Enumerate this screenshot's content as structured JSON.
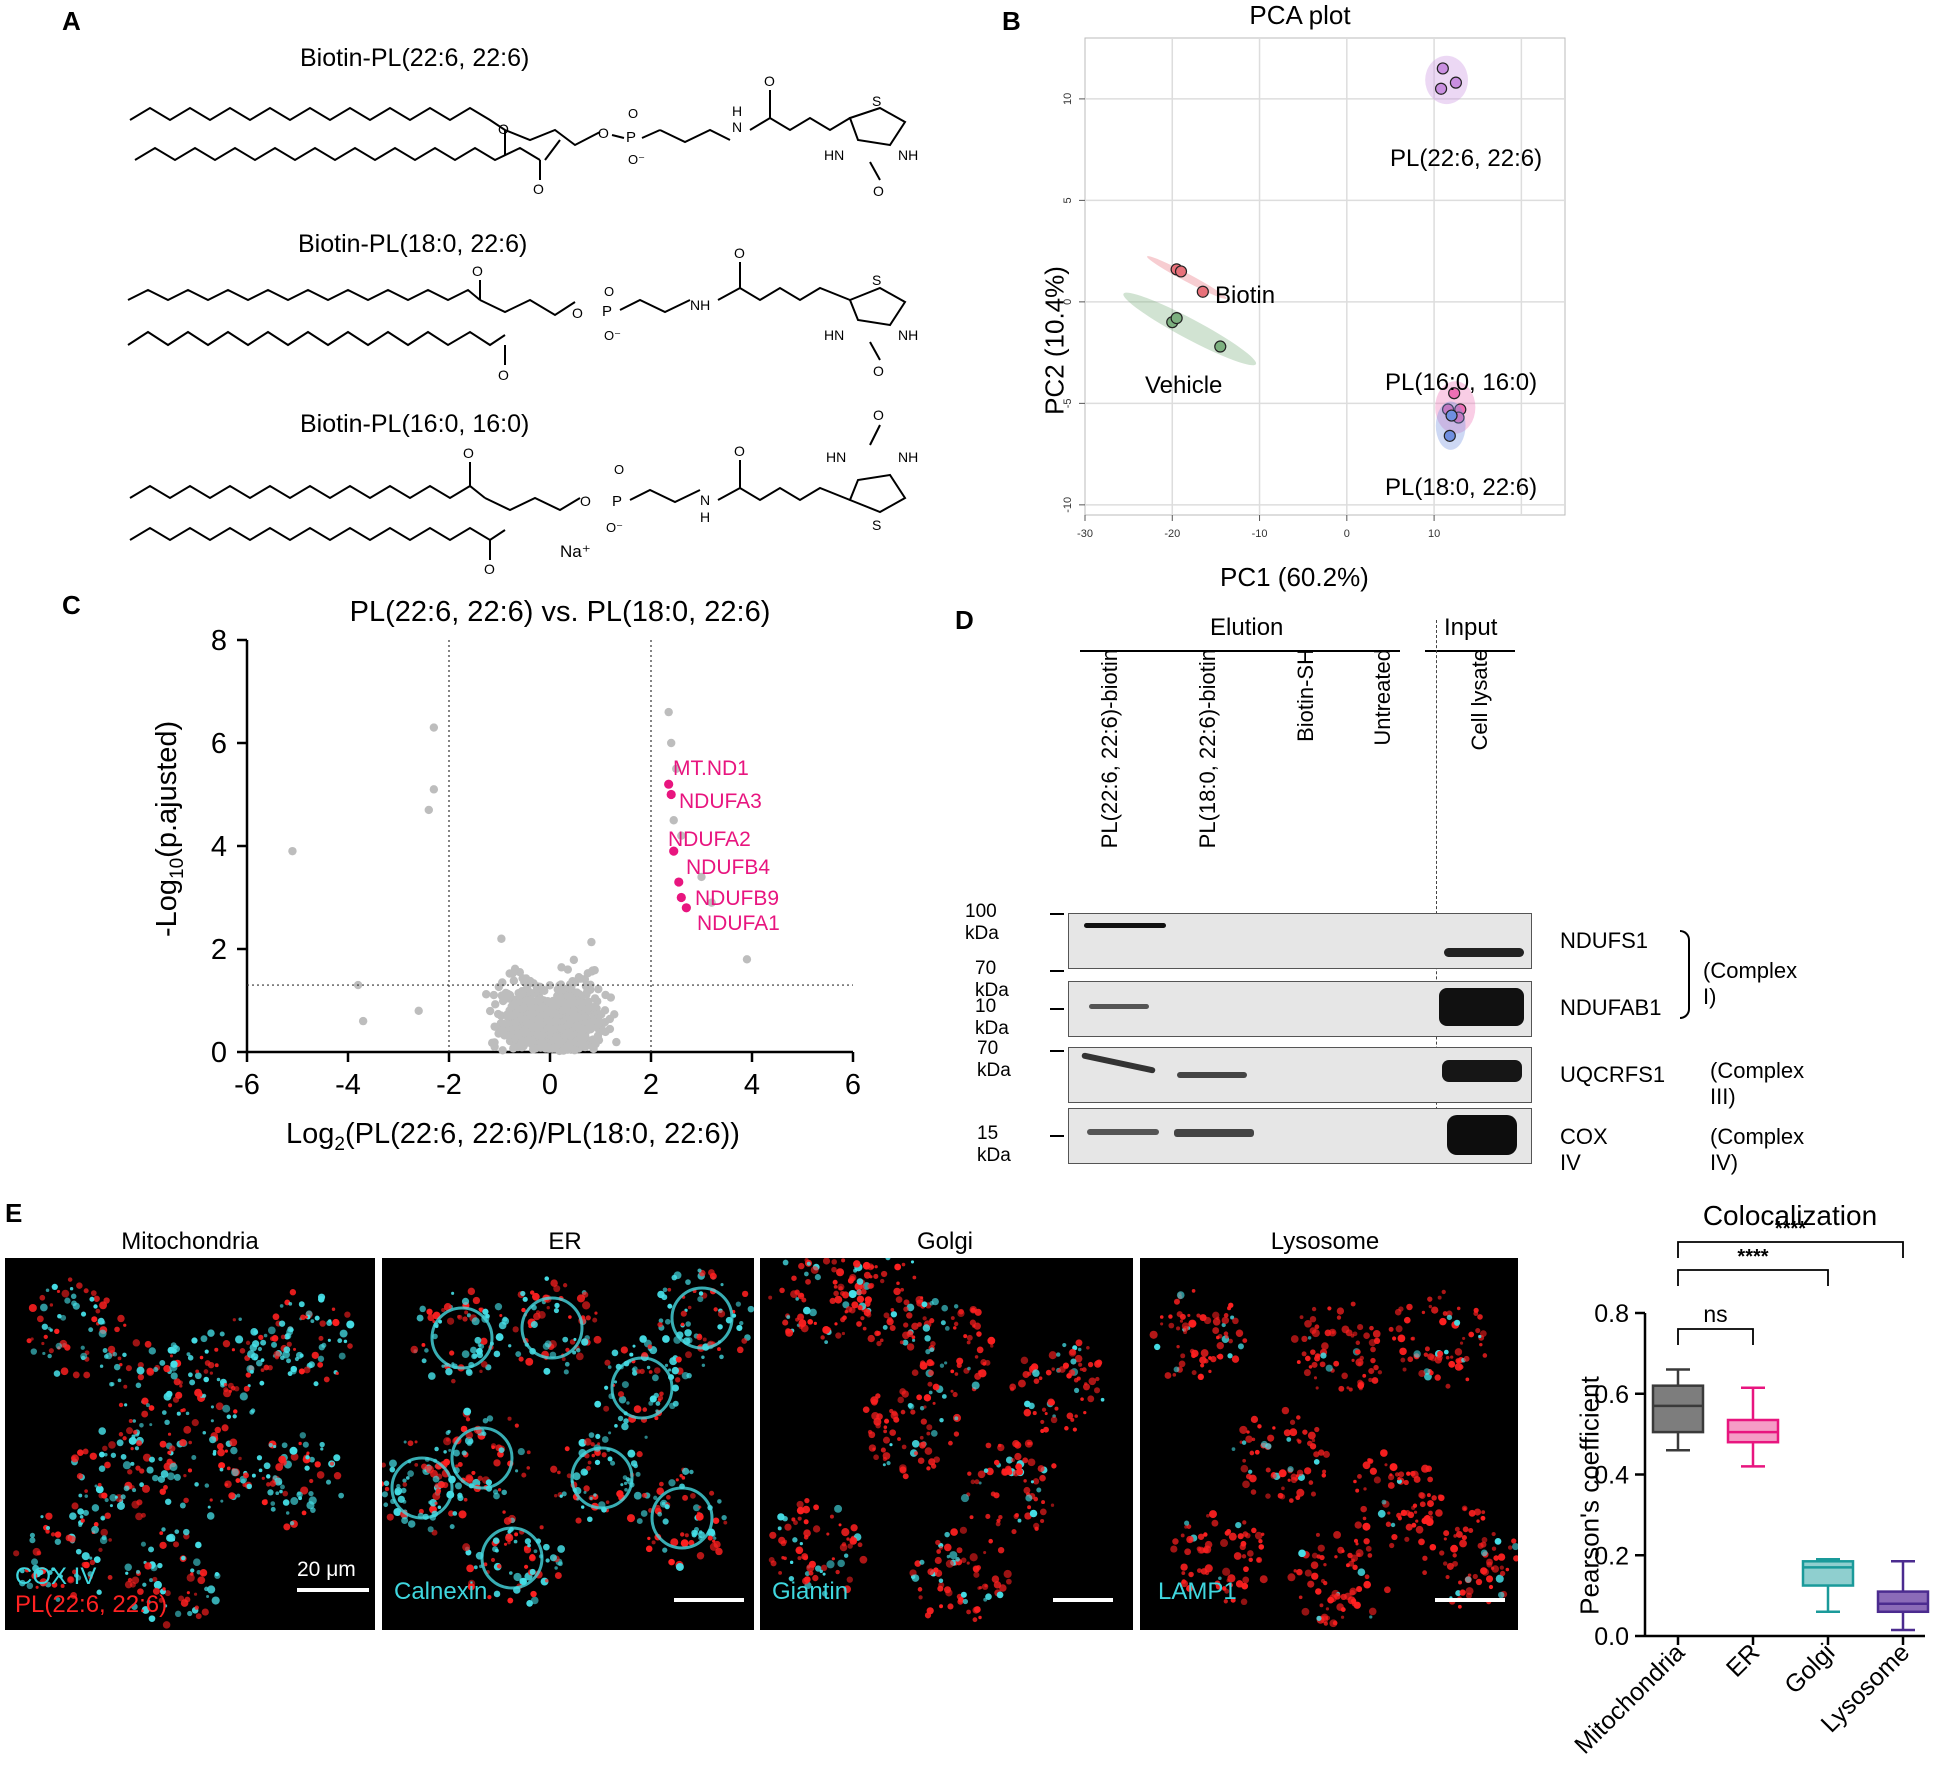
{
  "panels": {
    "a": "A",
    "b": "B",
    "c": "C",
    "d": "D",
    "e": "E"
  },
  "panel_a": {
    "compounds": [
      {
        "name": "Biotin-PL(22:6, 22:6)"
      },
      {
        "name": "Biotin-PL(18:0, 22:6)"
      },
      {
        "name": "Biotin-PL(16:0, 16:0)"
      }
    ],
    "counterion": "Na⁺"
  },
  "chart_data": [
    {
      "id": "pca",
      "type": "scatter",
      "title": "PCA plot",
      "xlabel": "PC1 (60.2%)",
      "ylabel": "PC2 (10.4%)",
      "xlim": [
        -30,
        25
      ],
      "ylim": [
        -10.5,
        13
      ],
      "xticks": [
        -30,
        -20,
        -10,
        0,
        10
      ],
      "yticks": [
        -10,
        -5,
        0,
        5,
        10
      ],
      "grid": true,
      "groups": [
        {
          "name": "PL(22:6, 22:6)",
          "color": "#c98fe0",
          "points": [
            [
              11,
              11.5
            ],
            [
              10.8,
              10.5
            ],
            [
              12.5,
              10.8
            ]
          ]
        },
        {
          "name": "Biotin",
          "color": "#e8717a",
          "points": [
            [
              -19.5,
              1.6
            ],
            [
              -19,
              1.5
            ],
            [
              -16.5,
              0.5
            ]
          ]
        },
        {
          "name": "Vehicle",
          "color": "#7cb07f",
          "points": [
            [
              -20,
              -1
            ],
            [
              -19.5,
              -0.8
            ],
            [
              -14.5,
              -2.2
            ]
          ]
        },
        {
          "name": "PL(16:0, 16:0)",
          "color": "#ee6fb4",
          "points": [
            [
              12.3,
              -4.5
            ],
            [
              13,
              -5.3
            ],
            [
              12.8,
              -5.7
            ],
            [
              11.6,
              -5.3
            ]
          ]
        },
        {
          "name": "PL(18:0, 22:6)",
          "color": "#6f8fe0",
          "points": [
            [
              11.8,
              -6.6
            ],
            [
              12,
              -5.6
            ]
          ]
        }
      ]
    },
    {
      "id": "volcano",
      "type": "scatter",
      "title": "PL(22:6, 22:6) vs. PL(18:0, 22:6)",
      "xlabel": "Log2(PL(22:6, 22:6)/PL(18:0, 22:6))",
      "ylabel": "-Log10(p.ajusted)",
      "xlim": [
        -6,
        6
      ],
      "ylim": [
        0,
        8
      ],
      "xticks": [
        -6,
        -4,
        -2,
        0,
        2,
        4,
        6
      ],
      "yticks": [
        0,
        2,
        4,
        6,
        8
      ],
      "thresholds": {
        "x": [
          -2,
          2
        ],
        "y": 1.3
      },
      "highlighted": [
        {
          "label": "MT.ND1",
          "x": 2.35,
          "y": 5.2
        },
        {
          "label": "NDUFA3",
          "x": 2.4,
          "y": 5.0
        },
        {
          "label": "NDUFA2",
          "x": 2.45,
          "y": 3.9
        },
        {
          "label": "NDUFB4",
          "x": 2.55,
          "y": 3.3
        },
        {
          "label": "NDUFB9",
          "x": 2.6,
          "y": 3.0
        },
        {
          "label": "NDUFA1",
          "x": 2.7,
          "y": 2.8
        }
      ],
      "background_color": "#bdbdbd",
      "highlight_color": "#e8157f"
    },
    {
      "id": "coloc",
      "type": "box",
      "title": "Colocalization",
      "ylabel": "Pearson's coefficient",
      "ylim": [
        0,
        0.8
      ],
      "yticks": [
        "0.0",
        "0.2",
        "0.4",
        "0.6",
        "0.8"
      ],
      "categories": [
        "Mitochondria",
        "ER",
        "Golgi",
        "Lysosome"
      ],
      "boxes": [
        {
          "min": 0.46,
          "q1": 0.505,
          "median": 0.57,
          "q3": 0.62,
          "max": 0.66,
          "stroke": "#3a3a3a",
          "fill": "#7d7d7d"
        },
        {
          "min": 0.42,
          "q1": 0.48,
          "median": 0.505,
          "q3": 0.535,
          "max": 0.615,
          "stroke": "#e8157f",
          "fill": "#f59cc6"
        },
        {
          "min": 0.06,
          "q1": 0.125,
          "median": 0.17,
          "q3": 0.185,
          "max": 0.19,
          "stroke": "#1a9a9a",
          "fill": "#8fcfcf"
        },
        {
          "min": 0.015,
          "q1": 0.06,
          "median": 0.08,
          "q3": 0.11,
          "max": 0.185,
          "stroke": "#4b2b8f",
          "fill": "#8b6bb8"
        }
      ],
      "significance": [
        {
          "from": 0,
          "to": 1,
          "label": "ns"
        },
        {
          "from": 0,
          "to": 2,
          "label": "****"
        },
        {
          "from": 0,
          "to": 3,
          "label": "****"
        }
      ]
    }
  ],
  "panel_d": {
    "elution_header": "Elution",
    "input_header": "Input",
    "lanes": [
      "PL(22:6, 22:6)-biotin",
      "PL(18:0, 22:6)-biotin",
      "Biotin-SH",
      "Untreated",
      "Cell lysate"
    ],
    "blots": [
      {
        "markers": [
          "100 kDa",
          "70 kDa"
        ],
        "protein": "NDUFS1"
      },
      {
        "markers": [
          "10 kDa"
        ],
        "protein": "NDUFAB1"
      },
      {
        "markers": [
          "70 kDa"
        ],
        "protein": "UQCRFS1",
        "complex": "(Complex III)"
      },
      {
        "markers": [
          "15 kDa"
        ],
        "protein": "COX IV",
        "complex": "(Complex IV)"
      }
    ],
    "complex_group": "(Complex I)"
  },
  "panel_e": {
    "images": [
      {
        "title": "Mitochondria",
        "marker": "COX IV",
        "probe": "PL(22:6, 22:6)",
        "scale": "20 μm"
      },
      {
        "title": "ER",
        "marker": "Calnexin"
      },
      {
        "title": "Golgi",
        "marker": "Giantin"
      },
      {
        "title": "Lysosome",
        "marker": "LAMP1"
      }
    ]
  }
}
